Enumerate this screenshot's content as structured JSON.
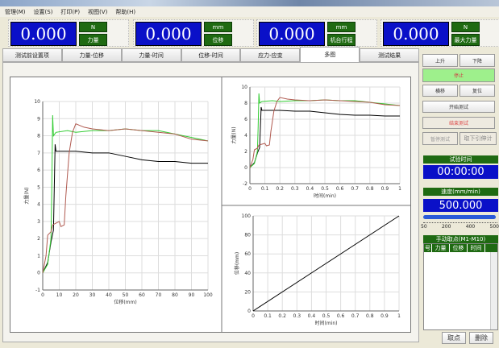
{
  "menu": [
    "管理(M)",
    "设置(S)",
    "打印(P)",
    "视图(V)",
    "帮助(H)"
  ],
  "displays": [
    {
      "value": "0.000",
      "unit": "N",
      "label": "力量"
    },
    {
      "value": "0.000",
      "unit": "mm",
      "label": "位移"
    },
    {
      "value": "0.000",
      "unit": "mm",
      "label": "机台行程"
    },
    {
      "value": "0.000",
      "unit": "N",
      "label": "最大力量"
    }
  ],
  "tabs": [
    "测试前设置项",
    "力量-位移",
    "力量-时间",
    "位移-时间",
    "应力-应变",
    "多图",
    "测试结果"
  ],
  "active_tab": "多图",
  "side": {
    "up": "上升",
    "down": "下降",
    "stop": "停止",
    "move": "横移",
    "reset": "复位",
    "start": "开始测试",
    "end": "结束测试",
    "pause": "暂停测试",
    "extensometer": "取下引伸计",
    "time_title": "试验时间",
    "time_value": "00:00:00",
    "speed_title": "速度(mm/min)",
    "speed_value": "500.000",
    "speed_ticks": [
      "50",
      "200",
      "400",
      "500"
    ],
    "speed_fraction": 1.0,
    "manual_title": "手动取点(M1-M10)",
    "manual_cols": [
      "号",
      "力量",
      "位移",
      "时间"
    ],
    "take_point": "取点",
    "delete": "删除"
  },
  "colors": {
    "display_bg": "#0a10c8",
    "label_bg": "#1f6a12",
    "series": [
      "#000000",
      "#33cc33",
      "#b05a50"
    ]
  },
  "chart_data": [
    {
      "type": "line",
      "xlabel": "位移(mm)",
      "ylabel": "力量(N)",
      "xlim": [
        0,
        100
      ],
      "ylim": [
        -1,
        10
      ],
      "xticks": [
        0,
        10,
        20,
        30,
        40,
        50,
        60,
        70,
        80,
        90,
        100
      ],
      "yticks": [
        -1,
        0,
        1,
        2,
        3,
        4,
        5,
        6,
        7,
        8,
        9,
        10
      ],
      "grid": true,
      "series": [
        {
          "color": "#000000",
          "points": [
            [
              0,
              0
            ],
            [
              3,
              0.6
            ],
            [
              5,
              1.8
            ],
            [
              6.5,
              2.5
            ],
            [
              7,
              5
            ],
            [
              7.5,
              7.5
            ],
            [
              8,
              7.1
            ],
            [
              20,
              7.1
            ],
            [
              30,
              7.0
            ],
            [
              40,
              7.0
            ],
            [
              50,
              6.8
            ],
            [
              60,
              6.6
            ],
            [
              70,
              6.5
            ],
            [
              80,
              6.5
            ],
            [
              90,
              6.4
            ],
            [
              100,
              6.4
            ]
          ]
        },
        {
          "color": "#33cc33",
          "points": [
            [
              0,
              0
            ],
            [
              3,
              0.5
            ],
            [
              5,
              2
            ],
            [
              5.5,
              5
            ],
            [
              6,
              9.2
            ],
            [
              6.5,
              8.0
            ],
            [
              8,
              8.2
            ],
            [
              15,
              8.3
            ],
            [
              20,
              8.2
            ],
            [
              30,
              8.3
            ],
            [
              40,
              8.3
            ],
            [
              50,
              8.4
            ],
            [
              60,
              8.3
            ],
            [
              70,
              8.3
            ],
            [
              80,
              8.1
            ],
            [
              90,
              7.9
            ],
            [
              100,
              7.7
            ]
          ]
        },
        {
          "color": "#b05a50",
          "points": [
            [
              0,
              0
            ],
            [
              2,
              1
            ],
            [
              3,
              2.2
            ],
            [
              5,
              2.4
            ],
            [
              6,
              2.8
            ],
            [
              8,
              2.9
            ],
            [
              10,
              3.0
            ],
            [
              11,
              2.7
            ],
            [
              13,
              2.8
            ],
            [
              14,
              4.5
            ],
            [
              16,
              7
            ],
            [
              18,
              8.2
            ],
            [
              20,
              8.7
            ],
            [
              25,
              8.5
            ],
            [
              30,
              8.4
            ],
            [
              40,
              8.3
            ],
            [
              50,
              8.4
            ],
            [
              60,
              8.3
            ],
            [
              70,
              8.2
            ],
            [
              80,
              8.1
            ],
            [
              90,
              7.8
            ],
            [
              100,
              7.7
            ]
          ]
        }
      ]
    },
    {
      "type": "line",
      "xlabel": "时间(min)",
      "ylabel": "力量(N)",
      "xlim": [
        0,
        1
      ],
      "ylim": [
        -2,
        10
      ],
      "xticks": [
        0,
        0.1,
        0.2,
        0.3,
        0.4,
        0.5,
        0.6,
        0.7,
        0.8,
        0.9,
        1
      ],
      "yticks": [
        -2,
        0,
        2,
        4,
        6,
        8,
        10
      ],
      "grid": true,
      "series": [
        {
          "color": "#000000",
          "points": [
            [
              0,
              0
            ],
            [
              0.03,
              0.6
            ],
            [
              0.05,
              1.8
            ],
            [
              0.065,
              2.5
            ],
            [
              0.07,
              5
            ],
            [
              0.075,
              7.5
            ],
            [
              0.08,
              7.1
            ],
            [
              0.2,
              7.1
            ],
            [
              0.3,
              7.0
            ],
            [
              0.4,
              7.0
            ],
            [
              0.5,
              6.8
            ],
            [
              0.6,
              6.6
            ],
            [
              0.7,
              6.5
            ],
            [
              0.8,
              6.5
            ],
            [
              0.9,
              6.4
            ],
            [
              1,
              6.4
            ]
          ]
        },
        {
          "color": "#33cc33",
          "points": [
            [
              0,
              0
            ],
            [
              0.03,
              0.5
            ],
            [
              0.05,
              2
            ],
            [
              0.055,
              5
            ],
            [
              0.06,
              9.2
            ],
            [
              0.065,
              8.0
            ],
            [
              0.08,
              8.2
            ],
            [
              0.15,
              8.3
            ],
            [
              0.2,
              8.2
            ],
            [
              0.3,
              8.3
            ],
            [
              0.4,
              8.3
            ],
            [
              0.5,
              8.4
            ],
            [
              0.6,
              8.3
            ],
            [
              0.7,
              8.3
            ],
            [
              0.8,
              8.1
            ],
            [
              0.9,
              7.9
            ],
            [
              1,
              7.7
            ]
          ]
        },
        {
          "color": "#b05a50",
          "points": [
            [
              0,
              0
            ],
            [
              0.02,
              1
            ],
            [
              0.03,
              2.2
            ],
            [
              0.05,
              2.4
            ],
            [
              0.06,
              2.8
            ],
            [
              0.08,
              2.9
            ],
            [
              0.1,
              3.0
            ],
            [
              0.11,
              2.7
            ],
            [
              0.13,
              2.8
            ],
            [
              0.14,
              4.5
            ],
            [
              0.16,
              7
            ],
            [
              0.18,
              8.2
            ],
            [
              0.2,
              8.7
            ],
            [
              0.25,
              8.5
            ],
            [
              0.3,
              8.4
            ],
            [
              0.4,
              8.3
            ],
            [
              0.5,
              8.4
            ],
            [
              0.6,
              8.3
            ],
            [
              0.7,
              8.2
            ],
            [
              0.8,
              8.1
            ],
            [
              0.9,
              7.8
            ],
            [
              1,
              7.7
            ]
          ]
        }
      ]
    },
    {
      "type": "line",
      "xlabel": "时间(min)",
      "ylabel": "位移(mm)",
      "xlim": [
        0,
        1
      ],
      "ylim": [
        0,
        100
      ],
      "xticks": [
        0,
        0.1,
        0.2,
        0.3,
        0.4,
        0.5,
        0.6,
        0.7,
        0.8,
        0.9,
        1
      ],
      "yticks": [
        0,
        20,
        40,
        60,
        80,
        100
      ],
      "grid": true,
      "series": [
        {
          "color": "#000000",
          "points": [
            [
              0,
              0
            ],
            [
              1,
              100
            ]
          ]
        }
      ]
    }
  ]
}
